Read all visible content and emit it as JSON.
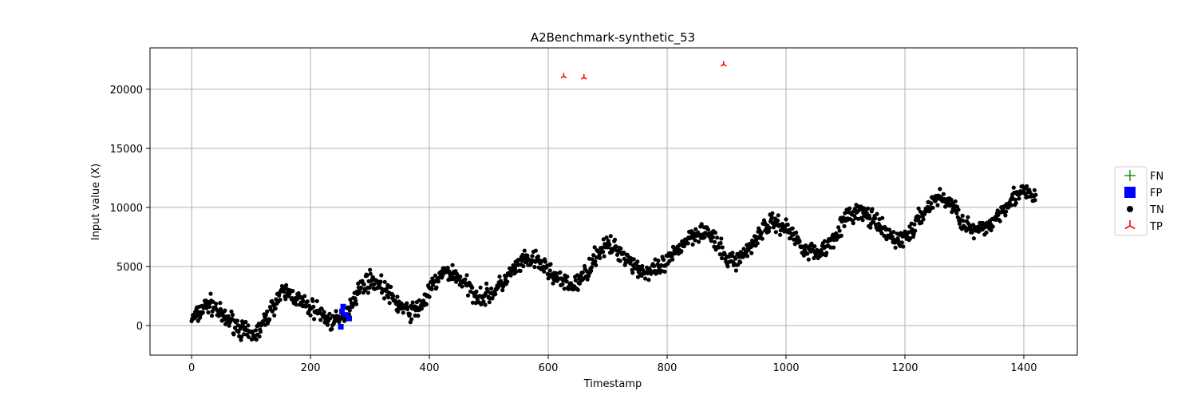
{
  "chart_data": {
    "type": "scatter",
    "title": "A2Benchmark-synthetic_53",
    "xlabel": "Timestamp",
    "ylabel": "Input value (X)",
    "xlim": [
      -70,
      1490
    ],
    "ylim": [
      -2500,
      23500
    ],
    "xticks": [
      0,
      200,
      400,
      600,
      800,
      1000,
      1200,
      1400
    ],
    "yticks": [
      0,
      5000,
      10000,
      15000,
      20000
    ],
    "grid": true,
    "legend_position": "outside-right",
    "colors": {
      "FN": "#008000",
      "FP": "#0000ff",
      "TN": "#000000",
      "TP": "#ff0000",
      "grid": "#b0b0b0"
    },
    "legend": [
      {
        "label": "FN",
        "marker": "plus"
      },
      {
        "label": "FP",
        "marker": "square"
      },
      {
        "label": "TN",
        "marker": "circle"
      },
      {
        "label": "TP",
        "marker": "tri-down"
      }
    ],
    "tn_curve": {
      "timestamps": [
        0,
        30,
        60,
        100,
        160,
        200,
        240,
        300,
        370,
        430,
        490,
        570,
        640,
        700,
        770,
        860,
        910,
        980,
        1050,
        1120,
        1190,
        1260,
        1320,
        1400,
        1420
      ],
      "values": [
        600,
        1800,
        500,
        -800,
        2800,
        1500,
        300,
        3800,
        1200,
        4500,
        2500,
        5500,
        3400,
        6700,
        4500,
        8000,
        5500,
        8700,
        6200,
        9600,
        7300,
        10800,
        8000,
        11200,
        10800
      ],
      "noise_amplitude": 600
    },
    "series": [
      {
        "name": "FN",
        "points": []
      },
      {
        "name": "FP",
        "points": [
          [
            251,
            -100
          ],
          [
            253,
            1200
          ],
          [
            255,
            1600
          ],
          [
            259,
            900
          ],
          [
            265,
            600
          ]
        ]
      },
      {
        "name": "TP",
        "points": [
          [
            626,
            21100
          ],
          [
            660,
            21000
          ],
          [
            895,
            22100
          ]
        ]
      }
    ]
  }
}
